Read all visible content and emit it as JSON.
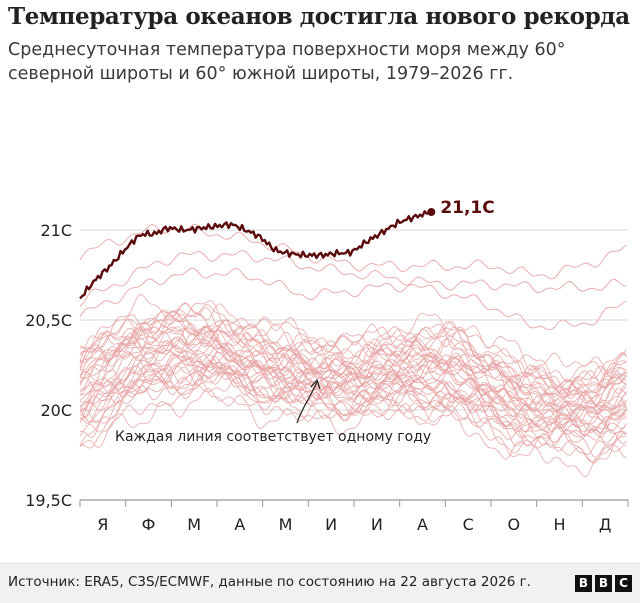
{
  "header": {
    "title": "Температура океанов достигла нового рекорда",
    "subtitle": "Среднесуточная температура поверхности моря между 60° северной широты и 60° южной широты, 1979–2026 гг."
  },
  "chart_data": {
    "type": "line",
    "title": "Температура океанов достигла нового рекорда",
    "subtitle": "Среднесуточная температура поверхности моря между 60° северной широты и 60° южной широты, 1979–2026 гг.",
    "xlabel": "",
    "ylabel": "",
    "x_tick_labels": [
      "Я",
      "Ф",
      "М",
      "А",
      "М",
      "И",
      "И",
      "А",
      "С",
      "О",
      "Н",
      "Д"
    ],
    "y_tick_labels": [
      "19,5С",
      "20С",
      "20,5С",
      "21С"
    ],
    "y_ticks": [
      19.5,
      20,
      20.5,
      21
    ],
    "ylim": [
      19.5,
      21.5
    ],
    "xlim": [
      0,
      365
    ],
    "grid": true,
    "highlight_label": "21,1С",
    "annotation": "Каждая линия соответствует одному году",
    "colors": {
      "highlight": "#5a0b0b",
      "background_lines": "#e8a4a4",
      "grid": "#d8d8d8",
      "text": "#222222"
    },
    "highlight_series": {
      "x": [
        0,
        10,
        20,
        31,
        40,
        50,
        59,
        70,
        80,
        90,
        100,
        110,
        120,
        130,
        140,
        151,
        160,
        170,
        181,
        190,
        200,
        212,
        222,
        234
      ],
      "values": [
        20.62,
        20.72,
        20.8,
        20.9,
        20.97,
        20.98,
        21.01,
        21.0,
        21.01,
        21.02,
        21.03,
        21.0,
        20.96,
        20.89,
        20.87,
        20.86,
        20.86,
        20.87,
        20.88,
        20.93,
        20.98,
        21.04,
        21.07,
        21.1
      ]
    },
    "background_series_recent": [
      {
        "x": [
          0,
          31,
          59,
          90,
          120,
          151,
          181,
          212,
          243,
          273,
          304,
          334,
          365
        ],
        "values": [
          20.86,
          20.96,
          21.01,
          20.98,
          20.93,
          20.86,
          20.81,
          20.8,
          20.8,
          20.8,
          20.75,
          20.8,
          20.9
        ]
      },
      {
        "x": [
          0,
          31,
          59,
          90,
          120,
          151,
          181,
          212,
          243,
          273,
          304,
          334,
          365
        ],
        "values": [
          20.6,
          20.73,
          20.84,
          20.86,
          20.85,
          20.8,
          20.76,
          20.73,
          20.7,
          20.7,
          20.68,
          20.68,
          20.7
        ]
      },
      {
        "x": [
          0,
          31,
          59,
          90,
          120,
          151,
          181,
          212,
          243,
          273,
          304,
          334,
          365
        ],
        "values": [
          20.52,
          20.65,
          20.74,
          20.76,
          20.73,
          20.64,
          20.66,
          20.69,
          20.65,
          20.58,
          20.47,
          20.48,
          20.6
        ]
      }
    ],
    "background_series_band": {
      "x": [
        0,
        31,
        59,
        90,
        120,
        151,
        181,
        212,
        243,
        273,
        304,
        334,
        365
      ],
      "high": [
        20.35,
        20.5,
        20.55,
        20.52,
        20.45,
        20.4,
        20.38,
        20.46,
        20.48,
        20.38,
        20.25,
        20.22,
        20.3
      ],
      "low": [
        19.82,
        19.97,
        20.08,
        20.1,
        20.03,
        19.96,
        19.95,
        19.95,
        19.93,
        19.82,
        19.76,
        19.75,
        19.8
      ]
    }
  },
  "footer": {
    "source": "Источник: ERA5, C3S/ECMWF, данные по состоянию на 22 августа 2026 г.",
    "logo_letters": [
      "B",
      "B",
      "C"
    ]
  }
}
